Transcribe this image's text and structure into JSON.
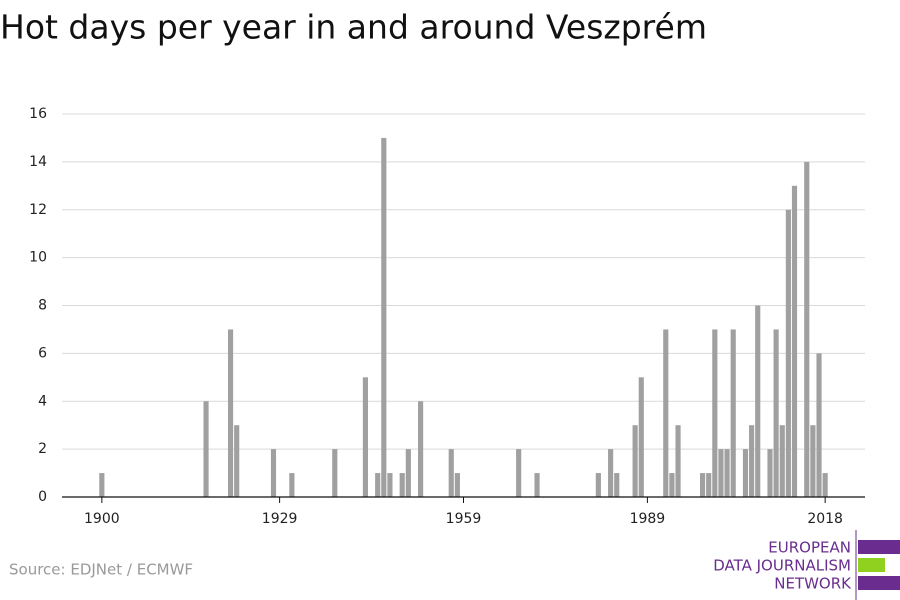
{
  "chart_data": {
    "type": "bar",
    "title": "Hot days per year in and around Veszprém",
    "source": "Source: EDJNet / ECMWF",
    "logo": [
      "EUROPEAN",
      "DATA JOURNALISM",
      "NETWORK"
    ],
    "color": "#a0a0a0",
    "grid": true,
    "x": [
      1900,
      1901,
      1902,
      1903,
      1904,
      1905,
      1906,
      1907,
      1908,
      1909,
      1910,
      1911,
      1912,
      1913,
      1914,
      1915,
      1916,
      1917,
      1918,
      1919,
      1920,
      1921,
      1922,
      1923,
      1924,
      1925,
      1926,
      1927,
      1928,
      1929,
      1930,
      1931,
      1932,
      1933,
      1934,
      1935,
      1936,
      1937,
      1938,
      1939,
      1940,
      1941,
      1942,
      1943,
      1944,
      1945,
      1946,
      1947,
      1948,
      1949,
      1950,
      1951,
      1952,
      1953,
      1954,
      1955,
      1956,
      1957,
      1958,
      1959,
      1960,
      1961,
      1962,
      1963,
      1964,
      1965,
      1966,
      1967,
      1968,
      1969,
      1970,
      1971,
      1972,
      1973,
      1974,
      1975,
      1976,
      1977,
      1978,
      1979,
      1980,
      1981,
      1982,
      1983,
      1984,
      1985,
      1986,
      1987,
      1988,
      1989,
      1990,
      1991,
      1992,
      1993,
      1994,
      1995,
      1996,
      1997,
      1998,
      1999,
      2000,
      2001,
      2002,
      2003,
      2004,
      2005,
      2006,
      2007,
      2008,
      2009,
      2010,
      2011,
      2012,
      2013,
      2014,
      2015,
      2016,
      2017,
      2018
    ],
    "values": [
      1,
      0,
      0,
      0,
      0,
      0,
      0,
      0,
      0,
      0,
      0,
      0,
      0,
      0,
      0,
      0,
      0,
      4,
      0,
      0,
      0,
      7,
      3,
      0,
      0,
      0,
      0,
      0,
      2,
      0,
      0,
      1,
      0,
      0,
      0,
      0,
      0,
      0,
      2,
      0,
      0,
      0,
      0,
      5,
      0,
      1,
      15,
      1,
      0,
      1,
      2,
      0,
      4,
      0,
      0,
      0,
      0,
      2,
      1,
      0,
      0,
      0,
      0,
      0,
      0,
      0,
      0,
      0,
      2,
      0,
      0,
      1,
      0,
      0,
      0,
      0,
      0,
      0,
      0,
      0,
      0,
      1,
      0,
      2,
      1,
      0,
      0,
      3,
      5,
      0,
      0,
      0,
      7,
      1,
      3,
      0,
      0,
      0,
      1,
      1,
      7,
      2,
      2,
      7,
      0,
      2,
      3,
      8,
      0,
      2,
      7,
      3,
      12,
      13,
      0,
      14,
      3,
      6,
      1
    ],
    "xlim": [
      1893.5,
      2024.5
    ],
    "xticks": [
      1900,
      1929,
      1959,
      1989,
      2018
    ],
    "ylim": [
      0,
      16
    ],
    "yticks": [
      0,
      2,
      4,
      6,
      8,
      10,
      12,
      14,
      16
    ]
  }
}
